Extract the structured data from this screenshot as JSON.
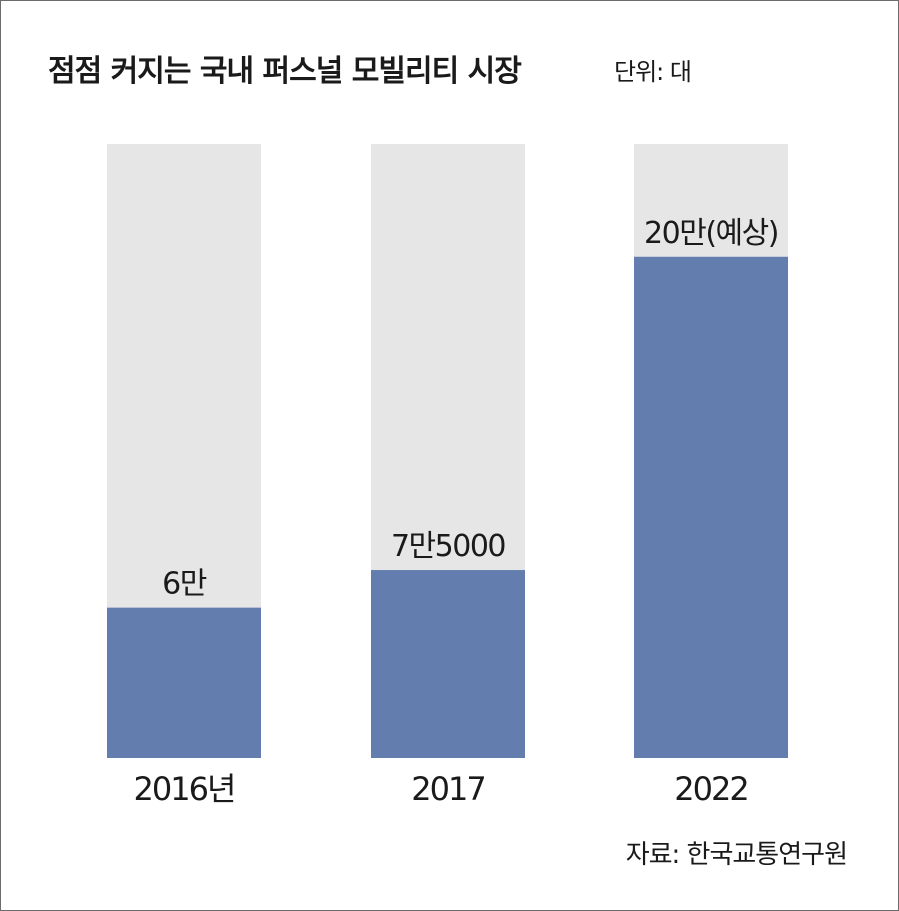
{
  "chart_data": {
    "type": "bar",
    "title": "점점 커지는 국내 퍼스널 모빌리티 시장",
    "unit_label": "단위: 대",
    "categories": [
      "2016년",
      "2017",
      "2022"
    ],
    "values": [
      60000,
      75000,
      200000
    ],
    "value_labels": [
      "6만",
      "7만5000",
      "20만(예상)"
    ],
    "ylim": [
      0,
      245000
    ],
    "source": "자료: 한국교통연구원",
    "colors": {
      "bar": "#627dae",
      "background_column": "#e6e6e6"
    }
  }
}
